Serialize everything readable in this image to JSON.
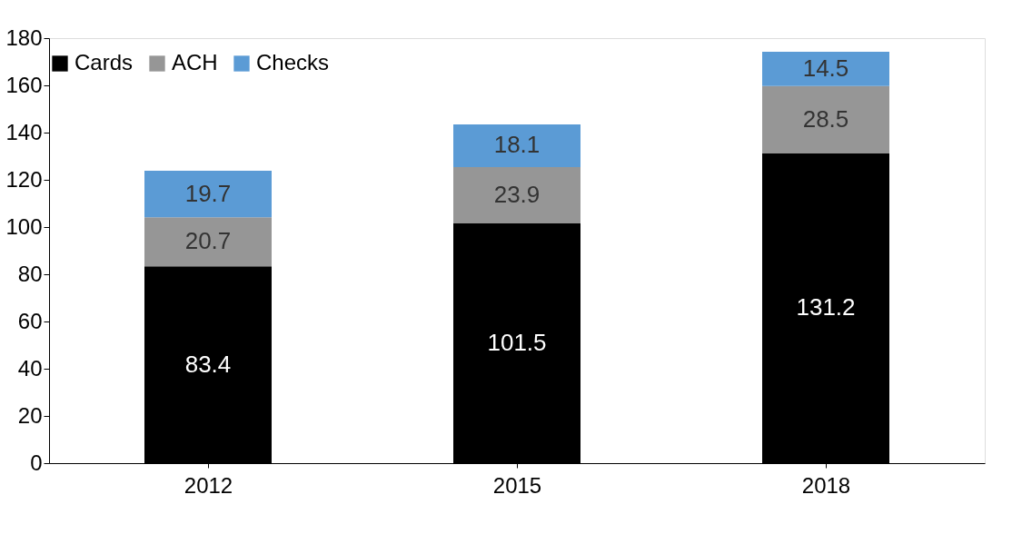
{
  "chart_data": {
    "type": "bar",
    "stacked": true,
    "categories": [
      "2012",
      "2015",
      "2018"
    ],
    "series": [
      {
        "name": "Cards",
        "color": "#000000",
        "values": [
          83.4,
          101.5,
          131.2
        ]
      },
      {
        "name": "ACH",
        "color": "#969696",
        "values": [
          20.7,
          23.9,
          28.5
        ]
      },
      {
        "name": "Checks",
        "color": "#5b9bd5",
        "values": [
          19.7,
          18.1,
          14.5
        ]
      }
    ],
    "ylim": [
      0,
      180
    ],
    "yticks": [
      0,
      20,
      40,
      60,
      80,
      100,
      120,
      140,
      160,
      180
    ],
    "grid": false,
    "legend": "top",
    "data_labels": true
  }
}
